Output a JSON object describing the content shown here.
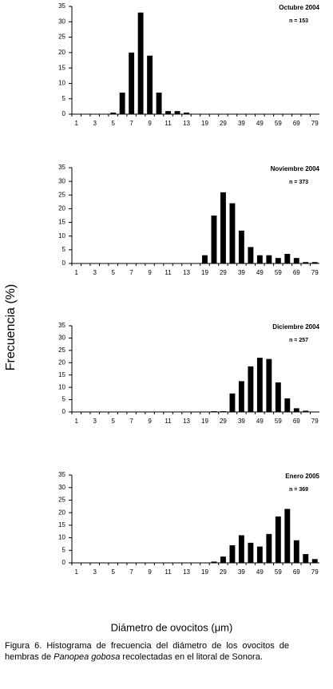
{
  "chart_data": [
    {
      "type": "bar",
      "title": "Octubre  2004",
      "subtitle": "n = 153",
      "color": "#000000",
      "categories": [
        1,
        null,
        3,
        null,
        5,
        null,
        7,
        null,
        9,
        null,
        11,
        null,
        13,
        null,
        19,
        null,
        29,
        null,
        39,
        null,
        49,
        null,
        59,
        null,
        69,
        null,
        79
      ],
      "values": [
        0,
        0,
        0,
        0,
        0.5,
        7,
        20,
        33,
        19,
        7,
        1,
        1,
        0.5,
        0,
        0,
        0,
        0,
        0,
        0,
        0,
        0,
        0,
        0,
        0,
        0,
        0,
        0
      ],
      "ylim": [
        0,
        35
      ],
      "yticks": [
        0,
        5,
        10,
        15,
        20,
        25,
        30,
        35
      ]
    },
    {
      "type": "bar",
      "title": "Noviembre 2004",
      "subtitle": "n = 373",
      "color": "#000000",
      "categories": [
        1,
        null,
        3,
        null,
        5,
        null,
        7,
        null,
        9,
        null,
        11,
        null,
        13,
        null,
        19,
        null,
        29,
        null,
        39,
        null,
        49,
        null,
        59,
        null,
        69,
        null,
        79
      ],
      "values": [
        0,
        0,
        0,
        0,
        0,
        0,
        0,
        0,
        0,
        0,
        0,
        0,
        0,
        0,
        3,
        17.5,
        26,
        22,
        12,
        6,
        3,
        3,
        2,
        3.5,
        2,
        0.5,
        0.5
      ],
      "ylim": [
        0,
        35
      ],
      "yticks": [
        0,
        5,
        10,
        15,
        20,
        25,
        30,
        35
      ]
    },
    {
      "type": "bar",
      "title": "Diciembre 2004",
      "subtitle": "n = 257",
      "color": "#000000",
      "categories": [
        1,
        null,
        3,
        null,
        5,
        null,
        7,
        null,
        9,
        null,
        11,
        null,
        13,
        null,
        19,
        null,
        29,
        null,
        39,
        null,
        49,
        null,
        59,
        null,
        69,
        null,
        79
      ],
      "values": [
        0,
        0,
        0,
        0,
        0,
        0,
        0,
        0,
        0,
        0,
        0,
        0,
        0,
        0,
        0,
        0.3,
        0.3,
        7.5,
        12.5,
        18.5,
        22,
        21.5,
        12,
        5.5,
        1.5,
        0.5,
        0
      ],
      "ylim": [
        0,
        35
      ],
      "yticks": [
        0,
        5,
        10,
        15,
        20,
        25,
        30,
        35
      ]
    },
    {
      "type": "bar",
      "title": "Enero 2005",
      "subtitle": "n = 369",
      "color": "#000000",
      "categories": [
        1,
        null,
        3,
        null,
        5,
        null,
        7,
        null,
        9,
        null,
        11,
        null,
        13,
        null,
        19,
        null,
        29,
        null,
        39,
        null,
        49,
        null,
        59,
        null,
        69,
        null,
        79
      ],
      "values": [
        0,
        0,
        0,
        0,
        0,
        0,
        0,
        0,
        0,
        0,
        0,
        0,
        0,
        0,
        0,
        0.5,
        2.5,
        7,
        11,
        8,
        6.5,
        11.5,
        18.5,
        21.5,
        9,
        3.5,
        1.5
      ],
      "ylim": [
        0,
        35
      ],
      "yticks": [
        0,
        5,
        10,
        15,
        20,
        25,
        30,
        35
      ]
    }
  ],
  "y_label": "Frecuencia (%)",
  "x_label": "Diámetro de ovocitos (μm)",
  "caption": [
    "Figura 6. Histograma de frecuencia del diámetro de los ovocitos de hembras de ",
    "Panopea gobosa",
    " recolectadas en el litoral de Sonora."
  ]
}
